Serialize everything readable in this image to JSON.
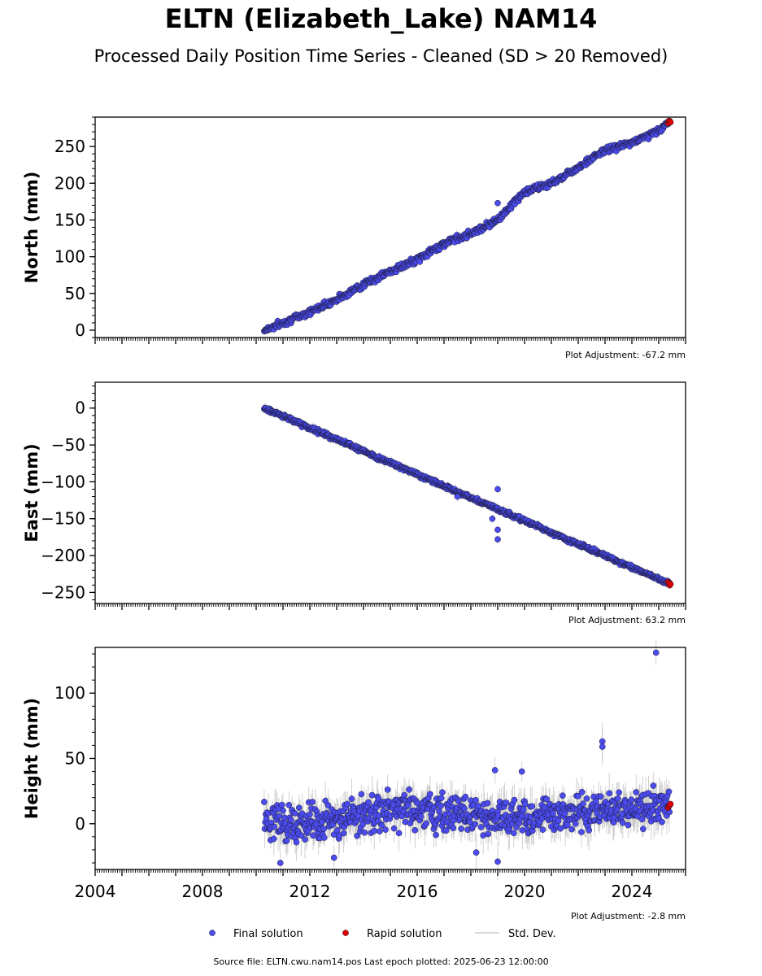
{
  "title": "ELTN (Elizabeth_Lake) NAM14",
  "subtitle": "Processed Daily Position Time Series - Cleaned (SD > 20 Removed)",
  "footer": "Source file: ELTN.cwu.nam14.pos  Last epoch plotted: 2025-06-23 12:00:00",
  "legend": {
    "placement": "bottom-center",
    "items": [
      {
        "label": "Final solution",
        "color": "#4b4bf0",
        "kind": "marker"
      },
      {
        "label": "Rapid solution",
        "color": "#e00000",
        "kind": "marker"
      },
      {
        "label": "Std. Dev.",
        "color": "#cccccc",
        "kind": "line"
      }
    ]
  },
  "colors": {
    "final": "#4b4bf0",
    "rapid": "#e00000",
    "stddev": "#bdbdbd",
    "edge": "#1a1a33"
  },
  "chart_data": [
    {
      "type": "scatter",
      "ylabel": "North (mm)",
      "adjustment": "Plot Adjustment: -67.2 mm",
      "xlim": [
        2004.0,
        2026.0
      ],
      "ylim": [
        -10,
        290
      ],
      "yticks": [
        0,
        50,
        100,
        150,
        200,
        250
      ],
      "ytick_labels": [
        "0",
        "50",
        "100",
        "150",
        "200",
        "250"
      ],
      "grid": false,
      "series": [
        {
          "kind": "final",
          "x": [
            2010.3,
            2011.0,
            2012.0,
            2013.0,
            2014.0,
            2015.0,
            2016.0,
            2017.0,
            2018.0,
            2019.0,
            2019.5,
            2020.0,
            2021.0,
            2022.0,
            2023.0,
            2024.0,
            2025.0,
            2025.4
          ],
          "y": [
            0,
            10,
            25,
            42,
            62,
            80,
            96,
            118,
            132,
            150,
            170,
            188,
            200,
            222,
            245,
            255,
            272,
            283
          ],
          "noise": 3
        },
        {
          "kind": "rapid",
          "x": [
            2025.35,
            2025.4,
            2025.45
          ],
          "y": [
            283,
            285,
            284
          ],
          "noise": 1
        }
      ],
      "outliers": [
        {
          "x": 2019.0,
          "y": 173
        }
      ]
    },
    {
      "type": "scatter",
      "ylabel": "East (mm)",
      "adjustment": "Plot Adjustment: 63.2 mm",
      "xlim": [
        2004.0,
        2026.0
      ],
      "ylim": [
        -265,
        35
      ],
      "yticks": [
        0,
        -50,
        -100,
        -150,
        -200,
        -250
      ],
      "ytick_labels": [
        "0",
        "−50",
        "−100",
        "−150",
        "−200",
        "−250"
      ],
      "grid": false,
      "series": [
        {
          "kind": "final",
          "x": [
            2010.3,
            2025.4
          ],
          "y": [
            0,
            -238
          ],
          "noise": 2
        },
        {
          "kind": "rapid",
          "x": [
            2025.35,
            2025.4,
            2025.45
          ],
          "y": [
            -237,
            -239,
            -240
          ],
          "noise": 1
        }
      ],
      "outliers": [
        {
          "x": 2019.0,
          "y": -110
        },
        {
          "x": 2019.0,
          "y": -165
        },
        {
          "x": 2019.0,
          "y": -178
        },
        {
          "x": 2018.8,
          "y": -150
        },
        {
          "x": 2017.5,
          "y": -120
        }
      ]
    },
    {
      "type": "scatter",
      "ylabel": "Height (mm)",
      "adjustment": "Plot Adjustment: -2.8 mm",
      "xlim": [
        2004.0,
        2026.0
      ],
      "ylim": [
        -35,
        135
      ],
      "yticks": [
        0,
        50,
        100
      ],
      "ytick_labels": [
        "0",
        "50",
        "100"
      ],
      "xticks": [
        2004,
        2008,
        2012,
        2016,
        2020,
        2024
      ],
      "xtick_labels": [
        "2004",
        "2008",
        "2012",
        "2016",
        "2020",
        "2024"
      ],
      "grid": false,
      "series": [
        {
          "kind": "final",
          "x": [
            2010.3,
            2011.0,
            2012.0,
            2013.0,
            2014.0,
            2015.0,
            2016.0,
            2017.0,
            2018.0,
            2019.0,
            2020.0,
            2021.0,
            2022.0,
            2023.0,
            2024.0,
            2025.4
          ],
          "y": [
            5,
            0,
            0,
            0,
            8,
            10,
            10,
            8,
            8,
            5,
            5,
            6,
            8,
            10,
            10,
            15
          ],
          "noise": 10
        },
        {
          "kind": "rapid",
          "x": [
            2025.35,
            2025.4,
            2025.45
          ],
          "y": [
            10,
            13,
            16
          ],
          "noise": 2
        }
      ],
      "outliers": [
        {
          "x": 2024.9,
          "y": 131
        },
        {
          "x": 2022.9,
          "y": 63
        },
        {
          "x": 2022.9,
          "y": 59
        },
        {
          "x": 2019.9,
          "y": 40
        },
        {
          "x": 2018.9,
          "y": 41
        },
        {
          "x": 2019.0,
          "y": -29
        },
        {
          "x": 2018.2,
          "y": -22
        },
        {
          "x": 2012.9,
          "y": -26
        },
        {
          "x": 2010.9,
          "y": -30
        }
      ]
    }
  ]
}
